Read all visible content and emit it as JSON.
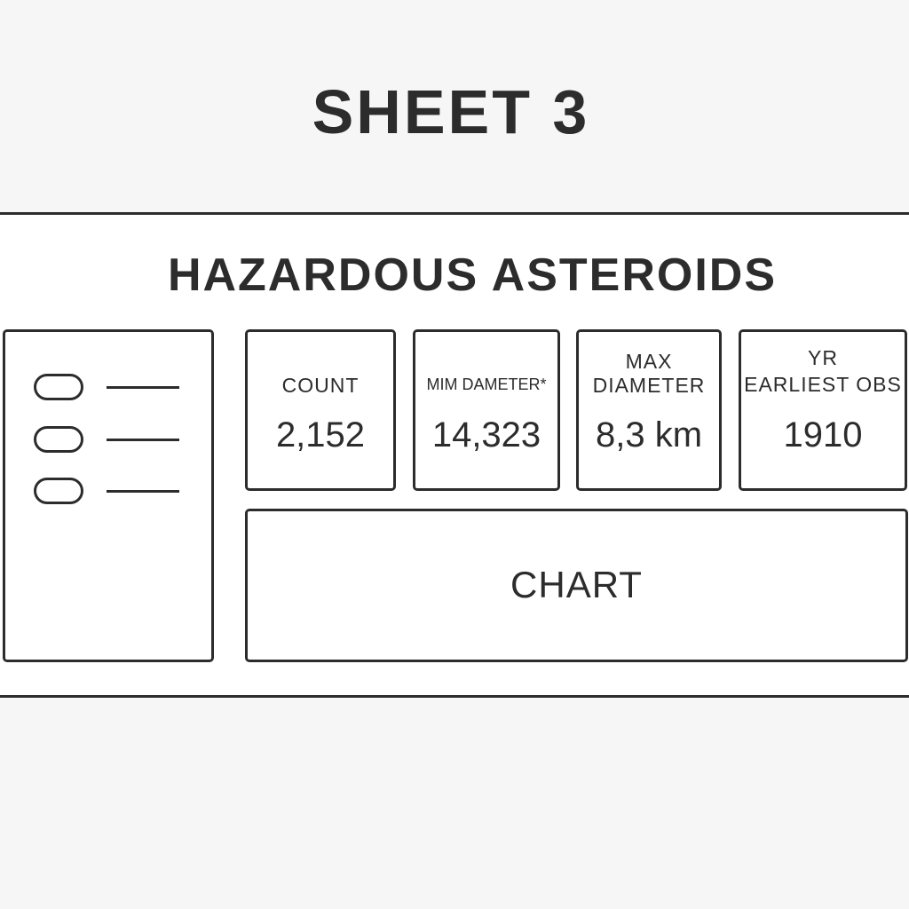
{
  "sheet": {
    "title": "SHEET 3"
  },
  "dashboard": {
    "title": "HAZARDOUS ASTEROIDS",
    "legend": {
      "items": [
        {
          "label": ""
        },
        {
          "label": ""
        },
        {
          "label": ""
        }
      ]
    },
    "kpis": {
      "count": {
        "label": "COUNT",
        "value": "2,152"
      },
      "min_diameter": {
        "label": "MIM DAMETER*",
        "value": "14,323"
      },
      "max_diameter": {
        "label_line1": "MAX",
        "label_line2": "DIAMETER",
        "value": "8,3 km"
      },
      "earliest_obs": {
        "label_line1": "YR",
        "label_line2": "EARLIEST OBS",
        "value": "1910"
      }
    },
    "chart": {
      "placeholder_label": "CHART"
    }
  }
}
